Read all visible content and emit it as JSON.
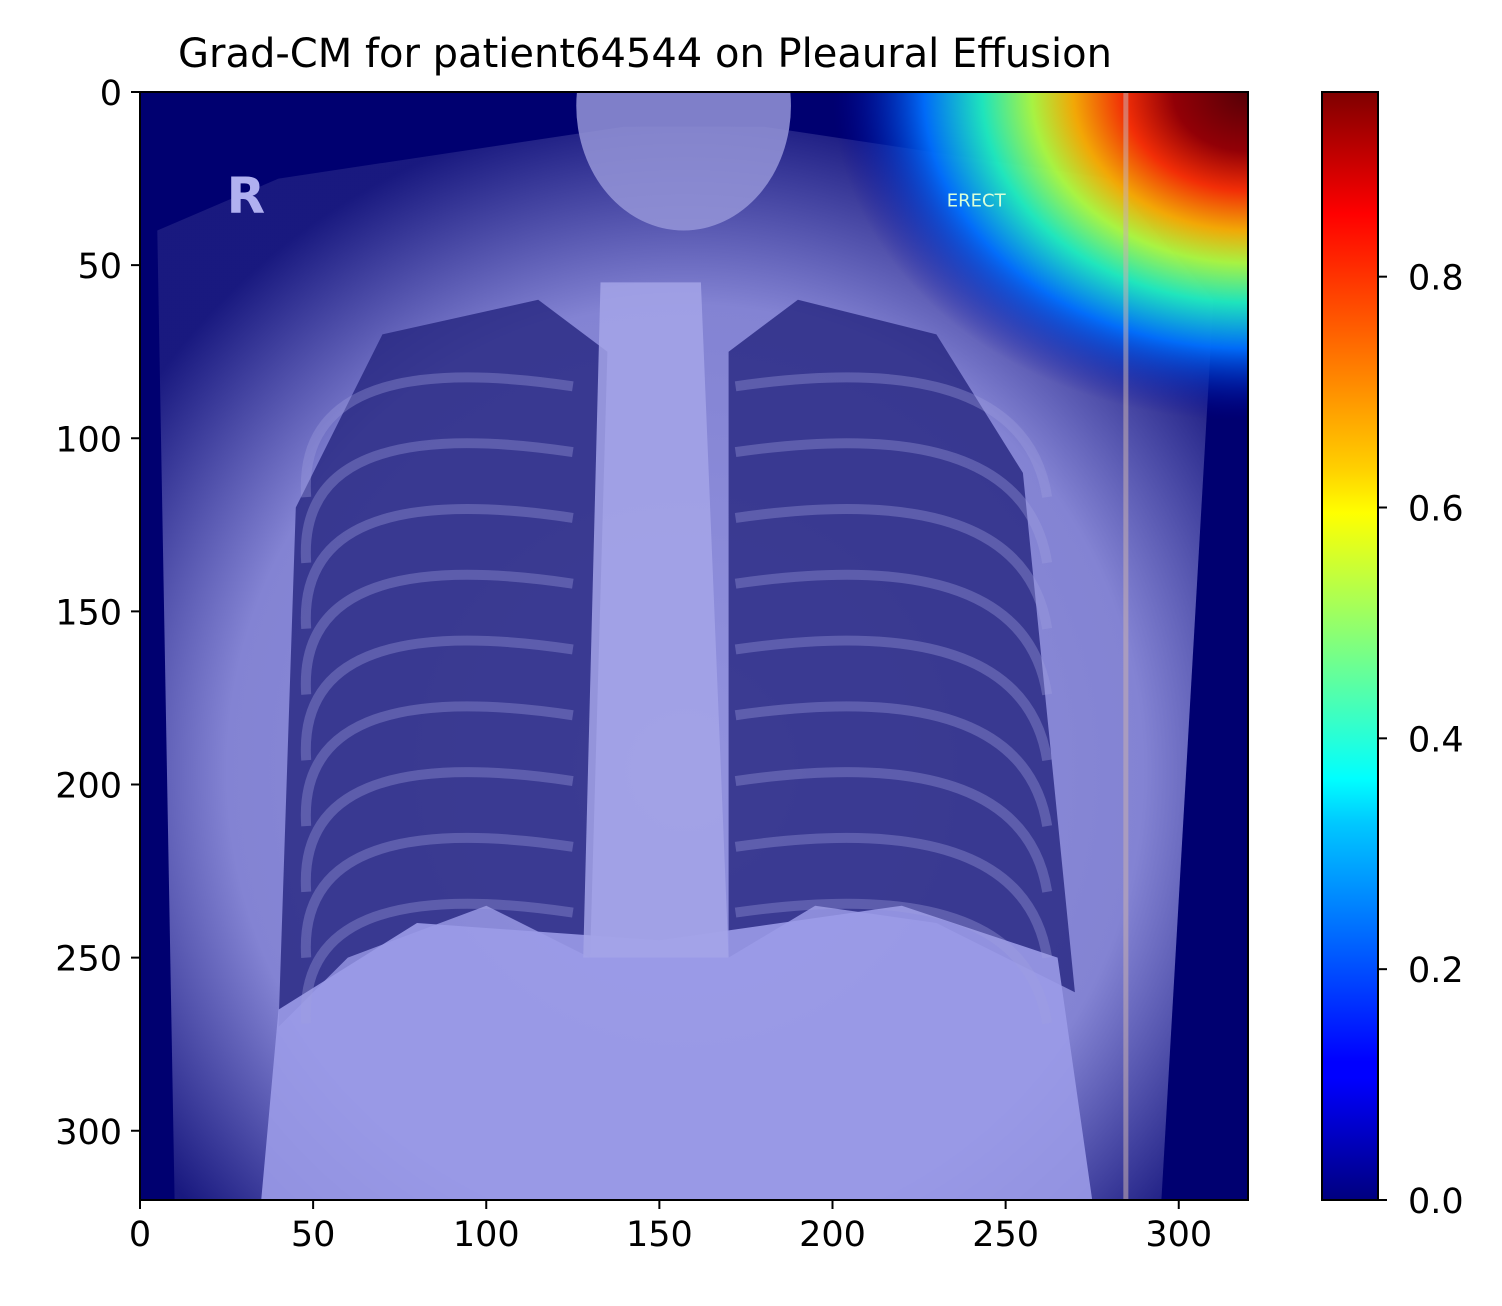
{
  "chart_data": {
    "type": "heatmap",
    "title": "Grad-CM for patient64544 on Pleaural Effusion",
    "background_image": "chest x-ray radiograph (grayscale) overlaid with jet-colormap class activation map",
    "image_annotations": [
      "R",
      "ERECT"
    ],
    "xlim": [
      0,
      320
    ],
    "ylim": [
      320,
      0
    ],
    "x_ticks": [
      0,
      50,
      100,
      150,
      200,
      250,
      300
    ],
    "y_ticks": [
      0,
      50,
      100,
      150,
      200,
      250,
      300
    ],
    "colorbar": {
      "colormap": "jet",
      "range": [
        0.0,
        0.96
      ],
      "ticks": [
        0.0,
        0.2,
        0.4,
        0.6,
        0.8
      ],
      "tick_labels": [
        "0.0",
        "0.2",
        "0.4",
        "0.6",
        "0.8"
      ]
    },
    "activation_hotspot": {
      "description": "high activation in top-right corner of image",
      "x_range": [
        200,
        320
      ],
      "y_range": [
        0,
        95
      ],
      "peak_value": 0.96,
      "peak_location": [
        305,
        10
      ]
    },
    "colors": {
      "cold": "#00008f",
      "hot": "#800000"
    }
  }
}
